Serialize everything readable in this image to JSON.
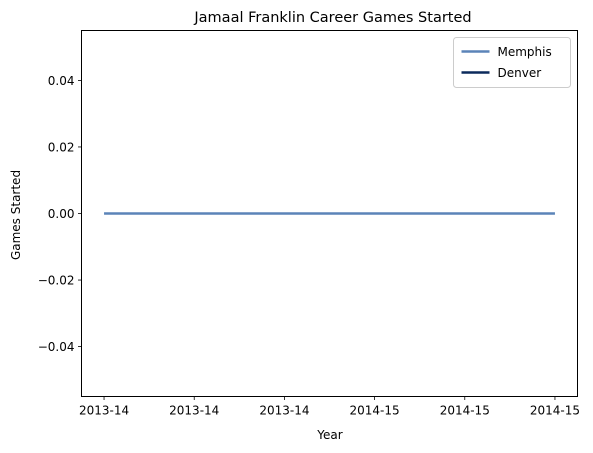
{
  "chart_data": {
    "type": "line",
    "title": "Jamaal Franklin Career Games Started",
    "xlabel": "Year",
    "ylabel": "Games Started",
    "x_tick_labels": [
      "2013-14",
      "2013-14",
      "2013-14",
      "2014-15",
      "2014-15",
      "2014-15"
    ],
    "y_ticks": [
      -0.04,
      -0.02,
      0.0,
      0.02,
      0.04
    ],
    "y_tick_labels": [
      "−0.04",
      "−0.02",
      "0.00",
      "0.02",
      "0.04"
    ],
    "xlim": [
      -0.25,
      5.25
    ],
    "ylim": [
      -0.055,
      0.055
    ],
    "grid": false,
    "legend_position": "upper right",
    "series": [
      {
        "name": "Memphis",
        "color": "#5b84b8",
        "x": [
          0,
          5
        ],
        "y": [
          0,
          0
        ]
      },
      {
        "name": "Denver",
        "color": "#0c2a5c",
        "x": [],
        "y": []
      }
    ]
  }
}
